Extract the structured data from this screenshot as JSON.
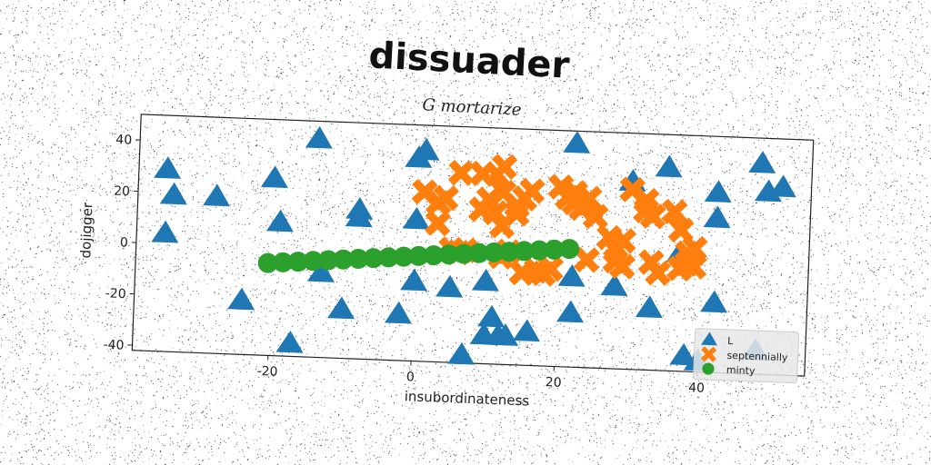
{
  "chart_data": {
    "type": "scatter",
    "title": "dissuader",
    "subtitle": "G mortarize",
    "xlabel": "insubordinateness",
    "ylabel": "dojigger",
    "xlim": [
      -39,
      55
    ],
    "ylim": [
      -42,
      50
    ],
    "xticks": [
      -20,
      0,
      20,
      40
    ],
    "yticks": [
      -40,
      -20,
      0,
      20,
      40
    ],
    "legend_position": "lower-right",
    "series": [
      {
        "name": "L",
        "marker": "triangle",
        "color": "#1f77b4",
        "points": [
          [
            -35,
            29
          ],
          [
            -34,
            19
          ],
          [
            -35,
            4
          ],
          [
            -28,
            19
          ],
          [
            -20,
            27
          ],
          [
            -19,
            10
          ],
          [
            -14,
            43
          ],
          [
            -13,
            -9
          ],
          [
            -10,
            -23
          ],
          [
            -8,
            16
          ],
          [
            -8,
            13
          ],
          [
            -24,
            -21
          ],
          [
            -17,
            -37
          ],
          [
            -2,
            -24
          ],
          [
            0,
            13
          ],
          [
            0,
            37
          ],
          [
            1,
            40
          ],
          [
            0,
            -11
          ],
          [
            5,
            -13
          ],
          [
            7,
            -39
          ],
          [
            10,
            -10
          ],
          [
            11,
            -24
          ],
          [
            12,
            -31
          ],
          [
            10,
            -31
          ],
          [
            13,
            -31
          ],
          [
            16,
            -29
          ],
          [
            22,
            -21
          ],
          [
            22,
            45
          ],
          [
            22,
            -7
          ],
          [
            28,
            -10
          ],
          [
            30,
            31
          ],
          [
            33,
            -18
          ],
          [
            35,
            37
          ],
          [
            37,
            4
          ],
          [
            38,
            -36
          ],
          [
            40,
            -38
          ],
          [
            42,
            28
          ],
          [
            42,
            18
          ],
          [
            42,
            -15
          ],
          [
            48,
            40
          ],
          [
            48,
            -33
          ],
          [
            49,
            29
          ],
          [
            51,
            31
          ]
        ]
      },
      {
        "name": "septennially",
        "marker": "x",
        "color": "#ff7f0e",
        "points": [
          [
            1,
            24
          ],
          [
            3,
            12
          ],
          [
            3,
            20
          ],
          [
            4,
            22
          ],
          [
            5,
            2
          ],
          [
            6,
            1
          ],
          [
            7,
            2
          ],
          [
            6,
            32
          ],
          [
            9,
            32
          ],
          [
            9,
            18
          ],
          [
            10,
            22
          ],
          [
            11,
            32
          ],
          [
            12,
            35
          ],
          [
            11,
            17
          ],
          [
            12,
            12
          ],
          [
            12,
            25
          ],
          [
            12,
            0
          ],
          [
            13,
            2
          ],
          [
            14,
            17
          ],
          [
            14,
            20
          ],
          [
            15,
            23
          ],
          [
            16,
            26
          ],
          [
            15,
            -6
          ],
          [
            17,
            -5
          ],
          [
            18,
            -6
          ],
          [
            19,
            -4
          ],
          [
            20,
            28
          ],
          [
            21,
            24
          ],
          [
            22,
            22
          ],
          [
            22,
            26
          ],
          [
            23,
            20
          ],
          [
            24,
            24
          ],
          [
            25,
            17
          ],
          [
            24,
            0
          ],
          [
            27,
            9
          ],
          [
            28,
            4
          ],
          [
            29,
            8
          ],
          [
            28,
            0
          ],
          [
            29,
            -2
          ],
          [
            30,
            28
          ],
          [
            32,
            20
          ],
          [
            32,
            24
          ],
          [
            33,
            18
          ],
          [
            33,
            0
          ],
          [
            34,
            -4
          ],
          [
            36,
            20
          ],
          [
            37,
            13
          ],
          [
            37,
            -2
          ],
          [
            38,
            0
          ],
          [
            39,
            -1
          ],
          [
            38,
            4
          ],
          [
            39,
            6
          ]
        ]
      },
      {
        "name": "minty",
        "marker": "circle",
        "color": "#2ca02c",
        "points": [
          [
            -20.5,
            -6
          ],
          [
            -18.4,
            -5.5
          ],
          [
            -16.3,
            -5
          ],
          [
            -14.2,
            -4.5
          ],
          [
            -12.1,
            -4
          ],
          [
            -10,
            -3.5
          ],
          [
            -7.9,
            -3
          ],
          [
            -5.8,
            -2.5
          ],
          [
            -3.7,
            -2
          ],
          [
            -1.6,
            -1.5
          ],
          [
            0.5,
            -1
          ],
          [
            2.6,
            -0.5
          ],
          [
            4.7,
            0
          ],
          [
            6.8,
            0.5
          ],
          [
            8.9,
            1
          ],
          [
            11,
            1.5
          ],
          [
            13.1,
            2
          ],
          [
            15.2,
            2.5
          ],
          [
            17.3,
            3
          ],
          [
            19.4,
            3.5
          ],
          [
            21.5,
            4
          ]
        ]
      }
    ]
  }
}
